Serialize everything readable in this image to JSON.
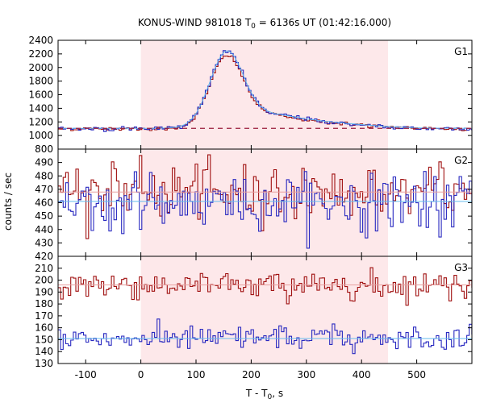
{
  "chart_data": {
    "type": "line",
    "title": "KONUS-WIND 981018 T",
    "title_sub": "0",
    "title_rest": " = 6136s UT (01:42:16.000)",
    "xlabel": "T - T",
    "xlabel_sub": "0",
    "xlabel_rest": ", s",
    "ylabel": "counts / sec",
    "xlim": [
      -150,
      600
    ],
    "x_ticks": [
      -100,
      0,
      100,
      200,
      300,
      400,
      500
    ],
    "shaded_interval": [
      0,
      448
    ],
    "colors": {
      "red": "#a01010",
      "blue": "#2828c0",
      "fit": "#66bbee",
      "shade": "#fde8ea",
      "background": "#9a1a3a"
    },
    "panels": [
      {
        "name": "G1",
        "ylim": [
          800,
          2400
        ],
        "y_ticks": [
          800,
          1000,
          1200,
          1400,
          1600,
          1800,
          2000,
          2200,
          2400
        ],
        "background_level": 1105,
        "profile": {
          "base": 1100,
          "gauss": [
            {
              "center": 155,
              "sigma": 30,
              "amp": 1020
            },
            {
              "center": 215,
              "sigma": 60,
              "amp": 180
            },
            {
              "center": 330,
              "sigma": 80,
              "amp": 80
            }
          ],
          "noise_red": 14,
          "noise_blue": 16,
          "red_scale": 0.95,
          "blue_scale": 1.0
        }
      },
      {
        "name": "G2",
        "ylim": [
          420,
          500
        ],
        "y_ticks": [
          420,
          430,
          440,
          450,
          460,
          470,
          480,
          490,
          500
        ],
        "red_mean": 468,
        "blue_mean": 460,
        "fit_red": 468,
        "fit_blue": 461,
        "noise_red": 10,
        "noise_blue": 10
      },
      {
        "name": "G3",
        "ylim": [
          130,
          220
        ],
        "y_ticks": [
          130,
          140,
          150,
          160,
          170,
          180,
          190,
          200,
          210,
          220
        ],
        "red_mean": 196,
        "blue_mean": 151,
        "fit_red": 196,
        "fit_blue": 151,
        "noise_red": 6,
        "noise_blue": 5
      }
    ]
  }
}
